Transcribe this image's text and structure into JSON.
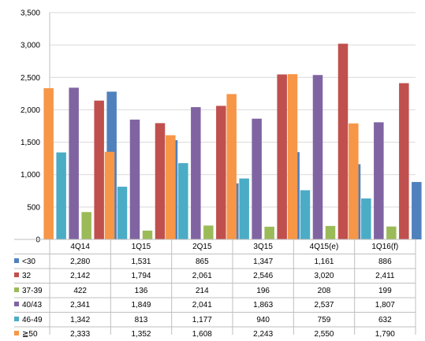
{
  "chart_data": {
    "type": "bar",
    "categories": [
      "4Q14",
      "1Q15",
      "2Q15",
      "3Q15",
      "4Q15(e)",
      "1Q16(f)"
    ],
    "ylim": [
      0,
      3500
    ],
    "yticks": [
      "0",
      "500",
      "1,000",
      "1,500",
      "2,000",
      "2,500",
      "3,000",
      "3,500"
    ],
    "grid": true,
    "legend": "data-table",
    "series": [
      {
        "name": "≧50",
        "color": "#f79646",
        "values": [
          2333,
          1352,
          1608,
          2243,
          2550,
          1790
        ],
        "labels": [
          "2,333",
          "1,352",
          "1,608",
          "2,243",
          "2,550",
          "1,790"
        ]
      },
      {
        "name": "46-49",
        "color": "#4bacc6",
        "values": [
          1342,
          813,
          1177,
          940,
          759,
          632
        ],
        "labels": [
          "1,342",
          "813",
          "1,177",
          "940",
          "759",
          "632"
        ]
      },
      {
        "name": "40/43",
        "color": "#8064a2",
        "values": [
          2341,
          1849,
          2041,
          1863,
          2537,
          1807
        ],
        "labels": [
          "2,341",
          "1,849",
          "2,041",
          "1,863",
          "2,537",
          "1,807"
        ]
      },
      {
        "name": "37-39",
        "color": "#9bbb59",
        "values": [
          422,
          136,
          214,
          196,
          208,
          199
        ],
        "labels": [
          "422",
          "136",
          "214",
          "196",
          "208",
          "199"
        ]
      },
      {
        "name": "32",
        "color": "#c0504d",
        "values": [
          2142,
          1794,
          2061,
          2546,
          3020,
          2411
        ],
        "labels": [
          "2,142",
          "1,794",
          "2,061",
          "2,546",
          "3,020",
          "2,411"
        ]
      },
      {
        "name": "<30",
        "color": "#4f81bd",
        "values": [
          2280,
          1531,
          865,
          1347,
          1161,
          886
        ],
        "labels": [
          "2,280",
          "1,531",
          "865",
          "1,347",
          "1,161",
          "886"
        ]
      }
    ],
    "table_order": [
      "<30",
      "32",
      "37-39",
      "40/43",
      "46-49",
      "≧50"
    ]
  }
}
